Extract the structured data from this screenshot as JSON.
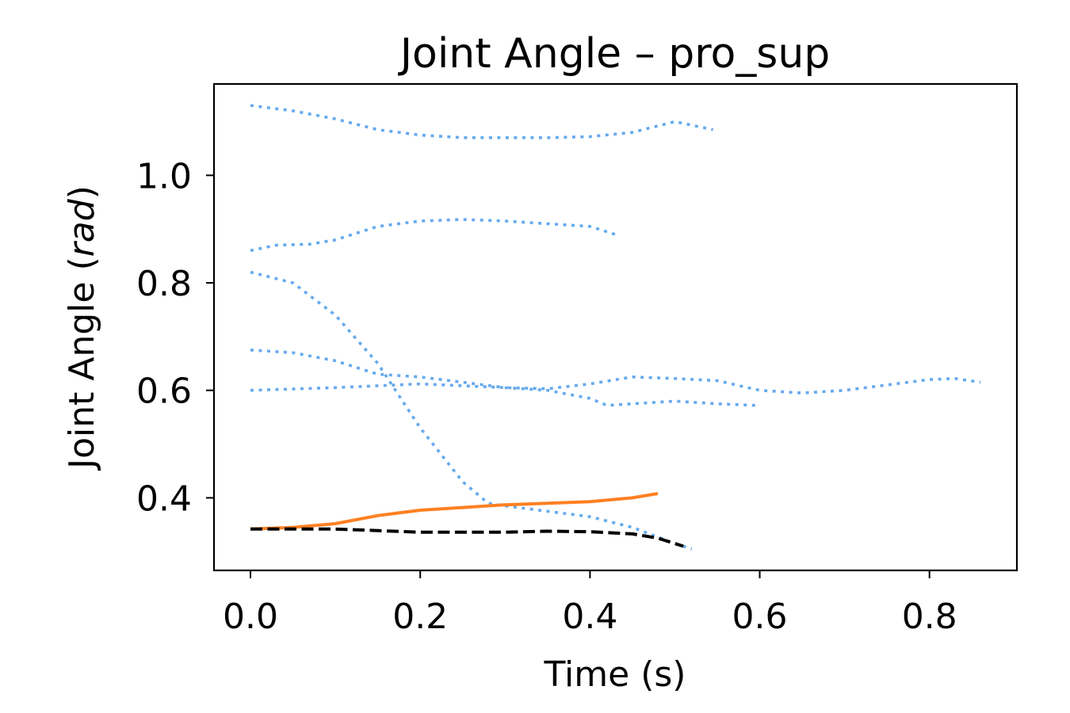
{
  "chart_data": {
    "type": "line",
    "title": "Joint Angle – pro_sup",
    "xlabel": "Time (s)",
    "ylabel": {
      "prefix": "Joint Angle (",
      "unit": "rad",
      "suffix": ")"
    },
    "xlim": [
      -0.043,
      0.903
    ],
    "ylim": [
      0.265,
      1.17
    ],
    "x_ticks": [
      0.0,
      0.2,
      0.4,
      0.6,
      0.8
    ],
    "x_tick_labels": [
      "0.0",
      "0.2",
      "0.4",
      "0.6",
      "0.8"
    ],
    "y_ticks": [
      0.4,
      0.6,
      0.8,
      1.0
    ],
    "y_tick_labels": [
      "0.4",
      "0.6",
      "0.8",
      "1.0"
    ],
    "grid": false,
    "legend": "none",
    "colors": {
      "reference": "#66aaee",
      "solid": "#ff8022",
      "dashed": "#000000"
    },
    "series": [
      {
        "style": "dotted",
        "color": "#66aaee",
        "x": [
          0.0,
          0.05,
          0.1,
          0.15,
          0.2,
          0.25,
          0.3,
          0.35,
          0.4,
          0.45,
          0.5,
          0.545
        ],
        "y": [
          1.13,
          1.12,
          1.105,
          1.085,
          1.075,
          1.07,
          1.07,
          1.07,
          1.072,
          1.08,
          1.1,
          1.085
        ]
      },
      {
        "style": "dotted",
        "color": "#66aaee",
        "x": [
          0.0,
          0.03,
          0.07,
          0.1,
          0.15,
          0.2,
          0.25,
          0.3,
          0.35,
          0.4,
          0.43
        ],
        "y": [
          0.86,
          0.87,
          0.872,
          0.88,
          0.905,
          0.915,
          0.918,
          0.915,
          0.91,
          0.905,
          0.89
        ]
      },
      {
        "style": "dotted",
        "color": "#66aaee",
        "x": [
          0.0,
          0.05,
          0.1,
          0.15,
          0.2,
          0.25,
          0.28,
          0.3,
          0.35,
          0.4,
          0.45,
          0.5,
          0.52
        ],
        "y": [
          0.82,
          0.8,
          0.74,
          0.65,
          0.53,
          0.43,
          0.39,
          0.385,
          0.375,
          0.365,
          0.345,
          0.315,
          0.305
        ]
      },
      {
        "style": "dotted",
        "color": "#66aaee",
        "x": [
          0.0,
          0.05,
          0.1,
          0.15,
          0.2,
          0.25,
          0.3,
          0.35,
          0.4,
          0.42,
          0.45,
          0.5,
          0.55,
          0.595
        ],
        "y": [
          0.675,
          0.67,
          0.655,
          0.63,
          0.625,
          0.615,
          0.605,
          0.6,
          0.585,
          0.572,
          0.575,
          0.58,
          0.575,
          0.572
        ]
      },
      {
        "style": "dotted",
        "color": "#66aaee",
        "x": [
          0.0,
          0.1,
          0.2,
          0.3,
          0.35,
          0.4,
          0.45,
          0.5,
          0.55,
          0.6,
          0.65,
          0.7,
          0.75,
          0.8,
          0.83,
          0.86
        ],
        "y": [
          0.6,
          0.605,
          0.612,
          0.605,
          0.603,
          0.612,
          0.625,
          0.622,
          0.618,
          0.6,
          0.595,
          0.6,
          0.61,
          0.62,
          0.622,
          0.615
        ]
      },
      {
        "style": "solid",
        "color": "#ff8022",
        "x": [
          0.0,
          0.05,
          0.1,
          0.15,
          0.2,
          0.25,
          0.3,
          0.35,
          0.4,
          0.45,
          0.48
        ],
        "y": [
          0.342,
          0.345,
          0.352,
          0.367,
          0.377,
          0.382,
          0.387,
          0.39,
          0.393,
          0.4,
          0.408
        ]
      },
      {
        "style": "dashed",
        "color": "#000000",
        "x": [
          0.0,
          0.1,
          0.15,
          0.2,
          0.25,
          0.3,
          0.35,
          0.4,
          0.45,
          0.48,
          0.51
        ],
        "y": [
          0.342,
          0.342,
          0.339,
          0.336,
          0.336,
          0.336,
          0.338,
          0.337,
          0.333,
          0.325,
          0.31
        ]
      }
    ]
  }
}
